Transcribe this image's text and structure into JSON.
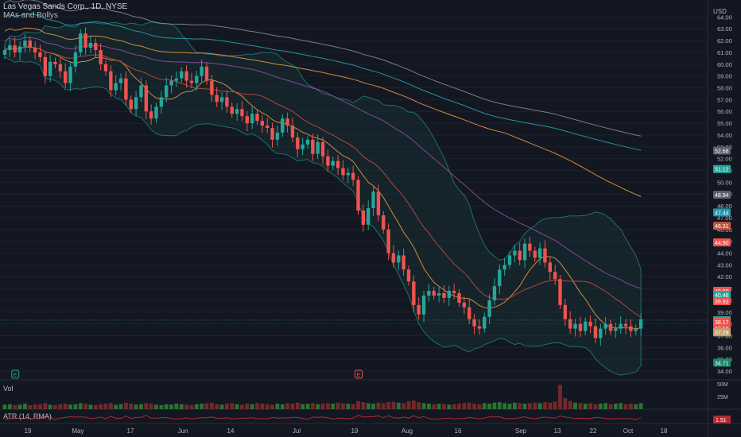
{
  "header": {
    "title": "Las Vegas Sands Corp., 1D, NYSE",
    "indicator": "MAs and Bollys"
  },
  "panes": {
    "volume_label": "Vol",
    "atr_label": "ATR (14, RMA)"
  },
  "currency": "USD",
  "colors": {
    "background": "#131722",
    "up": "#26a69a",
    "down": "#ef5350",
    "grid": "#1e222d",
    "axis_text": "#b2b5be",
    "bollinger": "#1f6f6a",
    "ma_orange": "#f0a040",
    "ma_purple": "#9c4db0",
    "ma_teal": "#2aa6b8",
    "ma_gray": "#8e8e9a",
    "ma_red": "#d24a4a"
  },
  "chart_data": {
    "type": "candlestick",
    "title": "Las Vegas Sands Corp., 1D, NYSE",
    "ylim": [
      33.4,
      64.9
    ],
    "y_ticks": [
      34.0,
      35.0,
      36.0,
      37.0,
      38.0,
      39.0,
      40.0,
      41.0,
      42.0,
      43.0,
      44.0,
      45.0,
      46.0,
      47.0,
      48.0,
      49.0,
      50.0,
      51.0,
      52.0,
      53.0,
      54.0,
      55.0,
      56.0,
      57.0,
      58.0,
      59.0,
      60.0,
      61.0,
      62.0,
      63.0,
      64.0
    ],
    "x_ticks": [
      "19",
      "May",
      "17",
      "Jun",
      "14",
      "Jul",
      "19",
      "Aug",
      "16",
      "Sep",
      "13",
      "22",
      "Oct",
      "18"
    ],
    "closes": [
      61.2,
      61.6,
      61.0,
      61.5,
      62.0,
      61.4,
      61.0,
      60.6,
      59.0,
      60.2,
      60.0,
      59.4,
      58.4,
      59.8,
      61.0,
      62.6,
      61.4,
      61.8,
      61.2,
      60.0,
      59.4,
      57.8,
      58.4,
      58.8,
      57.0,
      56.2,
      57.2,
      58.2,
      56.0,
      55.4,
      56.4,
      57.2,
      58.2,
      58.6,
      58.8,
      59.4,
      58.6,
      58.4,
      59.0,
      59.8,
      58.6,
      57.4,
      56.8,
      57.2,
      56.4,
      55.8,
      56.2,
      55.6,
      55.0,
      55.8,
      55.2,
      54.8,
      54.6,
      53.6,
      54.2,
      55.4,
      54.8,
      53.8,
      52.8,
      53.2,
      53.6,
      52.4,
      53.4,
      52.2,
      51.4,
      51.8,
      51.2,
      50.6,
      50.8,
      50.2,
      47.6,
      46.4,
      47.8,
      49.2,
      47.2,
      46.0,
      44.0,
      43.2,
      43.8,
      42.6,
      41.6,
      39.6,
      38.8,
      40.4,
      40.8,
      40.4,
      40.6,
      40.2,
      40.8,
      40.6,
      39.8,
      39.4,
      38.4,
      37.8,
      37.6,
      38.6,
      40.0,
      41.2,
      42.6,
      43.0,
      43.8,
      44.2,
      43.4,
      44.8,
      44.2,
      43.6,
      44.4,
      43.2,
      42.4,
      41.8,
      39.6,
      38.4,
      37.6,
      38.0,
      37.4,
      38.2,
      37.8,
      36.8,
      37.6,
      38.0,
      37.4,
      37.6,
      38.0,
      37.8,
      37.4,
      37.6,
      38.4
    ],
    "last_close": 38.32,
    "price_labels": [
      {
        "text": "52.68",
        "value": 52.68,
        "color": "#5d606b"
      },
      {
        "text": "51.12",
        "value": 51.12,
        "color": "#26a69a"
      },
      {
        "text": "48.94",
        "value": 48.94,
        "color": "#5d606b"
      },
      {
        "text": "47.44",
        "value": 47.44,
        "color": "#2196a8"
      },
      {
        "text": "46.31",
        "value": 46.31,
        "color": "#c9553a"
      },
      {
        "text": "44.90",
        "value": 44.9,
        "color": "#ef5350"
      },
      {
        "text": "40.80",
        "value": 40.8,
        "color": "#ef5350"
      },
      {
        "text": "40.46",
        "value": 40.46,
        "color": "#26a69a"
      },
      {
        "text": "39.93",
        "value": 39.93,
        "color": "#ef5350"
      },
      {
        "text": "38.32",
        "value": 38.32,
        "color": "#26a69a"
      },
      {
        "text": "38.17",
        "value": 38.17,
        "color": "#ef5350"
      },
      {
        "text": "37.59",
        "value": 37.59,
        "color": "#ef5350"
      },
      {
        "text": "37.29",
        "value": 37.29,
        "color": "#43a047"
      },
      {
        "text": "37.29",
        "value": 37.29,
        "color": "#c5a16a"
      },
      {
        "text": "34.71",
        "value": 34.71,
        "color": "#1b8a6b"
      }
    ],
    "events": [
      {
        "label": "E",
        "index": 2,
        "color": "#26a69a"
      },
      {
        "label": "E",
        "index": 70,
        "color": "#ef5350"
      }
    ],
    "volume_ticks": [
      "50M",
      "25M"
    ],
    "volume": [
      9,
      10,
      8,
      9,
      11,
      8,
      9,
      10,
      12,
      9,
      8,
      10,
      11,
      9,
      10,
      12,
      11,
      9,
      8,
      10,
      11,
      12,
      9,
      10,
      13,
      11,
      9,
      10,
      12,
      11,
      9,
      8,
      10,
      9,
      11,
      10,
      9,
      8,
      10,
      11,
      12,
      13,
      10,
      9,
      11,
      12,
      10,
      9,
      11,
      10,
      12,
      11,
      10,
      9,
      11,
      10,
      12,
      11,
      13,
      10,
      11,
      12,
      10,
      11,
      12,
      11,
      13,
      12,
      11,
      10,
      16,
      14,
      12,
      11,
      13,
      12,
      14,
      15,
      13,
      12,
      16,
      17,
      14,
      12,
      11,
      10,
      11,
      10,
      9,
      10,
      11,
      12,
      13,
      11,
      10,
      12,
      11,
      13,
      14,
      12,
      11,
      13,
      12,
      11,
      12,
      13,
      12,
      14,
      13,
      15,
      48,
      22,
      16,
      13,
      12,
      11,
      12,
      10,
      11,
      12,
      10,
      11,
      12,
      10,
      11,
      10,
      12
    ],
    "atr_value": "1.51",
    "atr_label": "ATR (14, RMA)"
  }
}
